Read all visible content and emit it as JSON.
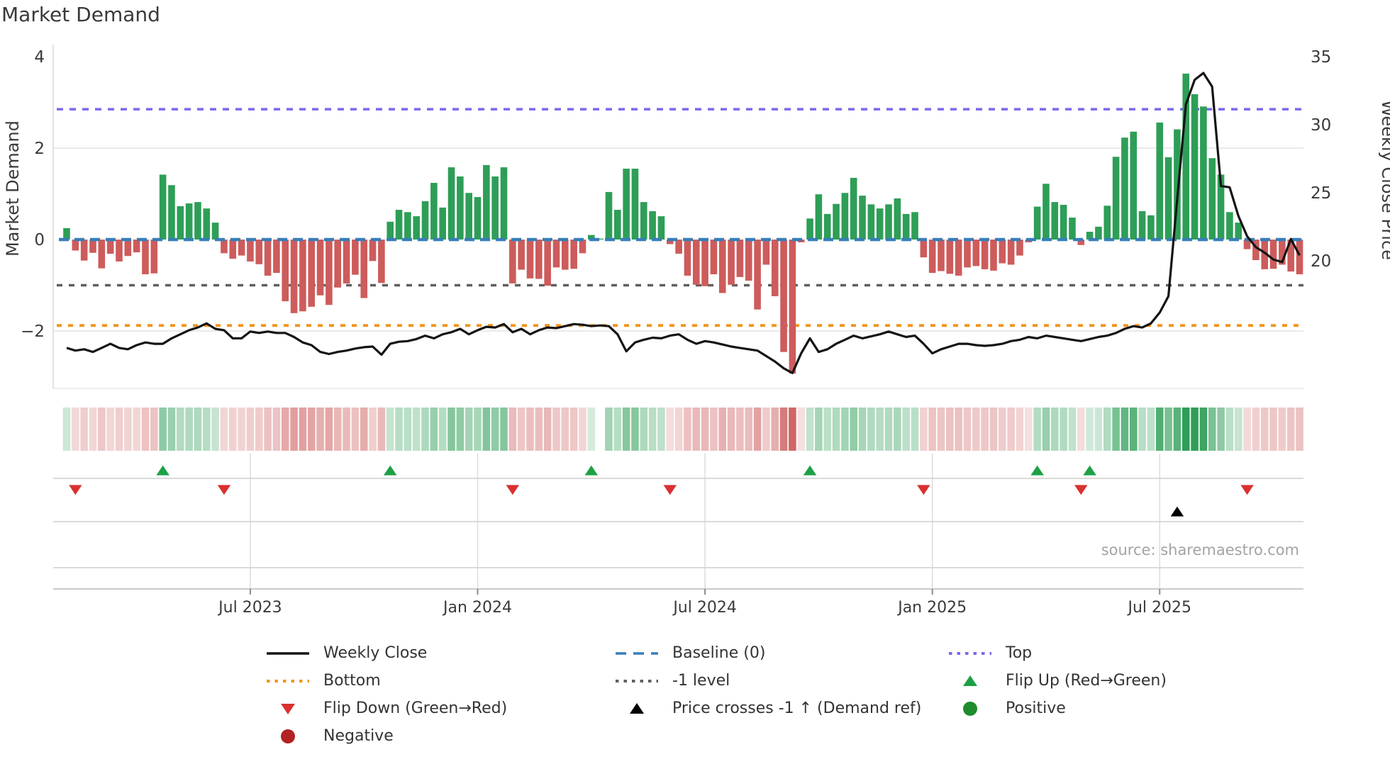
{
  "title": "Market Demand",
  "source_text": "source: sharemaestro.com",
  "axes": {
    "left_label": "Market Demand",
    "right_label": "Weekly Close Price",
    "left_ticks": [
      {
        "label": "4",
        "value": 4
      },
      {
        "label": "2",
        "value": 2
      },
      {
        "label": "0",
        "value": 0
      },
      {
        "label": "−2",
        "value": -2
      }
    ],
    "right_ticks": [
      {
        "label": "35",
        "value": 35
      },
      {
        "label": "30",
        "value": 30
      },
      {
        "label": "25",
        "value": 25
      },
      {
        "label": "20",
        "value": 20
      }
    ],
    "x_ticks": [
      {
        "label": "Jul 2023",
        "index": 21
      },
      {
        "label": "Jan 2024",
        "index": 47
      },
      {
        "label": "Jul 2024",
        "index": 73
      },
      {
        "label": "Jan 2025",
        "index": 99
      },
      {
        "label": "Jul 2025",
        "index": 125
      }
    ]
  },
  "colors": {
    "bar_green": "#2e9e57",
    "bar_red": "#cd5c5c",
    "baseline_blue": "#377eb8",
    "top_purple": "#7b68ee",
    "bottom_orange": "#f0951f",
    "level_gray": "#5f5f5f",
    "price_black": "#141414",
    "flip_up_green": "#1da045",
    "flip_down_red": "#d93030",
    "positive_green": "#1e8c2e",
    "negative_darkred": "#b22222",
    "cross_black": "#000000",
    "grid": "#e3e3ea",
    "lane_line": "#d4d4d4",
    "axis_line": "#c9c9c9",
    "tick_text": "#3a3a3a"
  },
  "chart_data": {
    "type": "bar+line combo with heatmap strip and event markers",
    "x_unit": "weeks (Feb 2023 – Oct 2025)",
    "left_axis": {
      "label": "Market Demand",
      "ticks": [
        4,
        2,
        0,
        -2
      ],
      "ylim": [
        -3.3,
        4.3
      ]
    },
    "right_axis": {
      "label": "Weekly Close Price",
      "ticks": [
        35,
        30,
        25,
        20
      ],
      "ylim": [
        10.5,
        35.9
      ]
    },
    "reference_lines": {
      "top": 2.85,
      "baseline": 0,
      "minus_one": -1,
      "bottom": -1.88
    },
    "series": [
      {
        "name": "Market Demand (bars)",
        "axis": "left",
        "values": [
          0.25,
          -0.24,
          -0.46,
          -0.29,
          -0.63,
          -0.31,
          -0.48,
          -0.36,
          -0.28,
          -0.76,
          -0.74,
          1.42,
          1.19,
          0.73,
          0.79,
          0.82,
          0.68,
          0.37,
          -0.3,
          -0.42,
          -0.35,
          -0.48,
          -0.54,
          -0.79,
          -0.73,
          -1.35,
          -1.61,
          -1.57,
          -1.47,
          -1.22,
          -1.43,
          -1.05,
          -0.96,
          -0.77,
          -1.28,
          -0.47,
          -0.95,
          0.39,
          0.65,
          0.6,
          0.51,
          0.84,
          1.24,
          0.7,
          1.58,
          1.38,
          1.02,
          0.93,
          1.63,
          1.38,
          1.58,
          -0.96,
          -0.66,
          -0.85,
          -0.86,
          -1.01,
          -0.61,
          -0.66,
          -0.64,
          -0.3,
          0.1,
          0.02,
          1.04,
          0.65,
          1.55,
          1.55,
          0.82,
          0.62,
          0.51,
          -0.1,
          -0.31,
          -0.79,
          -0.99,
          -1.02,
          -0.76,
          -1.17,
          -0.99,
          -0.82,
          -0.9,
          -1.53,
          -0.55,
          -1.24,
          -2.46,
          -2.93,
          -0.06,
          0.46,
          0.99,
          0.56,
          0.78,
          1.02,
          1.35,
          0.96,
          0.77,
          0.68,
          0.77,
          0.9,
          0.56,
          0.6,
          -0.39,
          -0.73,
          -0.69,
          -0.75,
          -0.79,
          -0.61,
          -0.58,
          -0.65,
          -0.68,
          -0.52,
          -0.55,
          -0.35,
          -0.06,
          0.72,
          1.22,
          0.82,
          0.76,
          0.48,
          -0.12,
          0.17,
          0.28,
          0.74,
          1.81,
          2.23,
          2.36,
          0.62,
          0.53,
          2.56,
          1.8,
          2.41,
          3.63,
          3.18,
          2.91,
          1.78,
          1.42,
          0.6,
          0.37,
          -0.21,
          -0.45,
          -0.65,
          -0.64,
          -0.55,
          -0.7,
          -0.76
        ]
      },
      {
        "name": "Weekly Close",
        "axis": "right",
        "values": [
          13.6,
          13.4,
          13.5,
          13.3,
          13.6,
          13.9,
          13.6,
          13.5,
          13.8,
          14.0,
          13.9,
          13.9,
          14.3,
          14.6,
          14.9,
          15.1,
          15.4,
          15.0,
          14.9,
          14.3,
          14.3,
          14.8,
          14.7,
          14.8,
          14.7,
          14.7,
          14.4,
          14.0,
          13.8,
          13.3,
          13.15,
          13.3,
          13.4,
          13.55,
          13.65,
          13.7,
          13.1,
          13.9,
          14.05,
          14.1,
          14.25,
          14.5,
          14.3,
          14.6,
          14.75,
          15.0,
          14.6,
          14.9,
          15.15,
          15.1,
          15.35,
          14.75,
          15.0,
          14.6,
          14.9,
          15.1,
          15.05,
          15.2,
          15.35,
          15.3,
          15.2,
          15.25,
          15.2,
          14.6,
          13.35,
          14.0,
          14.2,
          14.35,
          14.3,
          14.5,
          14.6,
          14.2,
          13.9,
          14.1,
          14.0,
          13.85,
          13.7,
          13.6,
          13.5,
          13.4,
          13.0,
          12.6,
          12.1,
          11.75,
          13.2,
          14.3,
          13.3,
          13.5,
          13.9,
          14.2,
          14.5,
          14.3,
          14.45,
          14.6,
          14.8,
          14.6,
          14.4,
          14.5,
          13.9,
          13.2,
          13.5,
          13.7,
          13.9,
          13.9,
          13.8,
          13.75,
          13.8,
          13.9,
          14.1,
          14.2,
          14.4,
          14.3,
          14.5,
          14.4,
          14.3,
          14.2,
          14.1,
          14.25,
          14.4,
          14.5,
          14.7,
          15.0,
          15.2,
          15.1,
          15.4,
          16.2,
          17.4,
          24.5,
          31.5,
          33.3,
          33.8,
          32.8,
          25.5,
          25.4,
          23.3,
          21.8,
          21.0,
          20.6,
          20.1,
          19.9,
          21.6,
          20.4
        ]
      }
    ],
    "markers": {
      "flip_up_indices": [
        11,
        37,
        60,
        85,
        111,
        117
      ],
      "flip_down_indices": [
        1,
        18,
        51,
        69,
        98,
        116,
        135
      ],
      "price_cross_up_indices": [
        127
      ]
    },
    "heatmap": "weekly cells colored by demand sign and magnitude (green positive, red negative)",
    "legend_position": "bottom, 3 columns",
    "grid": "faint horizontal gridlines at demand 2 and -2; faint vertical gridlines in marker lanes at x ticks"
  },
  "legend": {
    "columns": [
      {
        "x": 370,
        "items": [
          {
            "name": "legend-weekly-close",
            "swatch": "line",
            "color_key": "price_black",
            "label": "Weekly Close"
          },
          {
            "name": "legend-bottom",
            "swatch": "dotted",
            "color_key": "bottom_orange",
            "label": "Bottom"
          },
          {
            "name": "legend-flip-down",
            "swatch": "triangle-down",
            "color_key": "flip_down_red",
            "label": "Flip Down (Green→Red)"
          },
          {
            "name": "legend-negative",
            "swatch": "circle",
            "color_key": "negative_darkred",
            "label": "Negative"
          }
        ]
      },
      {
        "x": 862,
        "items": [
          {
            "name": "legend-baseline",
            "swatch": "dashed",
            "color_key": "baseline_blue",
            "label": "Baseline (0)"
          },
          {
            "name": "legend-minus-one-level",
            "swatch": "dotted",
            "color_key": "level_gray",
            "label": "-1 level"
          },
          {
            "name": "legend-price-crosses",
            "swatch": "triangle-up",
            "color_key": "cross_black",
            "label": "Price crosses -1 ↑ (Demand ref)"
          }
        ]
      },
      {
        "x": 1332,
        "items": [
          {
            "name": "legend-top",
            "swatch": "dotted",
            "color_key": "top_purple",
            "label": "Top"
          },
          {
            "name": "legend-flip-up",
            "swatch": "triangle-up",
            "color_key": "flip_up_green",
            "label": "Flip Up (Red→Green)"
          },
          {
            "name": "legend-positive",
            "swatch": "circle",
            "color_key": "positive_green",
            "label": "Positive"
          }
        ]
      }
    ]
  }
}
